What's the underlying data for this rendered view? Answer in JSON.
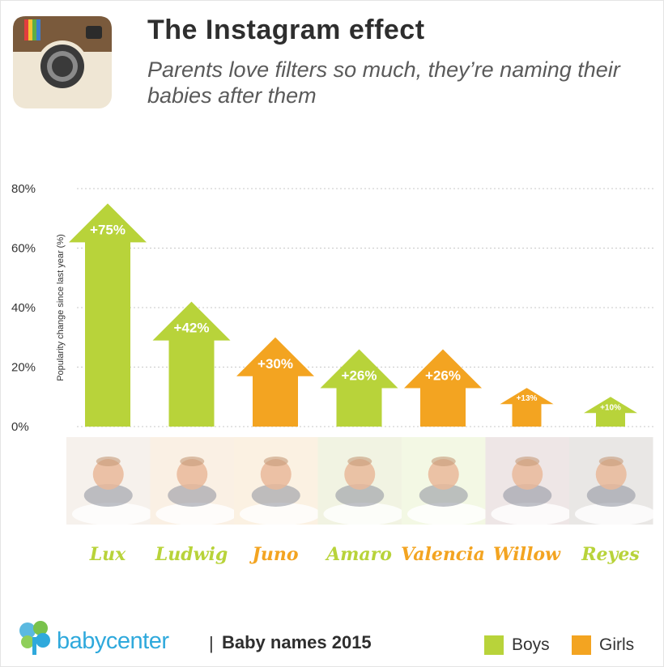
{
  "header": {
    "title": "The Instagram effect",
    "subtitle": "Parents love filters so much, they’re naming their babies after them"
  },
  "colors": {
    "boys": "#b8d33a",
    "girls": "#f3a421",
    "grid": "#c8c8c8"
  },
  "chart_data": {
    "type": "bar",
    "title": "The Instagram effect",
    "subtitle": "Parents love filters so much, they’re naming their babies after them",
    "xlabel": "",
    "ylabel": "Popularity change since last year (%)",
    "ylim": [
      0,
      80
    ],
    "yticks": [
      0,
      20,
      40,
      60,
      80
    ],
    "ytick_labels": [
      "0%",
      "20%",
      "40%",
      "60%",
      "80%"
    ],
    "grid": true,
    "categories": [
      "Lux",
      "Ludwig",
      "Juno",
      "Amaro",
      "Valencia",
      "Willow",
      "Reyes"
    ],
    "values": [
      75,
      42,
      30,
      26,
      26,
      13,
      10
    ],
    "value_labels": [
      "+75%",
      "+42%",
      "+30%",
      "+26%",
      "+26%",
      "+13%",
      "+10%"
    ],
    "groups": [
      "Boys",
      "Boys",
      "Girls",
      "Boys",
      "Girls",
      "Girls",
      "Boys"
    ],
    "legend": {
      "position": "bottom-right",
      "entries": [
        "Boys",
        "Girls"
      ]
    }
  },
  "photo_icons": [
    "baby-photo",
    "baby-photo",
    "baby-photo",
    "baby-photo",
    "baby-photo",
    "baby-photo",
    "baby-photo"
  ],
  "footer": {
    "brand": "babycenter",
    "separator": "|",
    "text": "Baby names 2015"
  }
}
